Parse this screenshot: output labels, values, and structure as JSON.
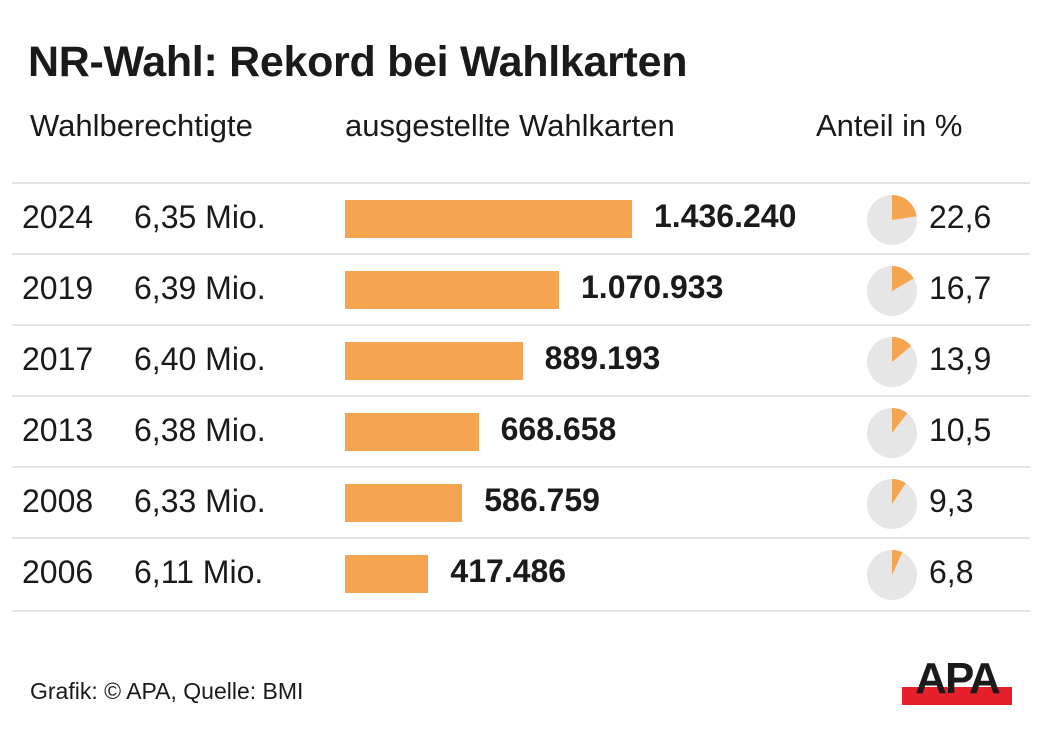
{
  "chart_data": {
    "type": "bar",
    "title": "NR-Wahl: Rekord bei Wahlkarten",
    "columns": [
      "Wahlberechtigte",
      "ausgestellte Wahlkarten",
      "Anteil in %"
    ],
    "categories": [
      "2024",
      "2019",
      "2017",
      "2013",
      "2008",
      "2006"
    ],
    "eligible": [
      "6,35 Mio.",
      "6,39 Mio.",
      "6,40 Mio.",
      "6,38 Mio.",
      "6,33 Mio.",
      "6,11 Mio."
    ],
    "values": [
      1436240,
      1070933,
      889193,
      668658,
      586759,
      417486
    ],
    "value_labels": [
      "1.436.240",
      "1.070.933",
      "889.193",
      "668.658",
      "586.759",
      "417.486"
    ],
    "share": [
      22.6,
      16.7,
      13.9,
      10.5,
      9.3,
      6.8
    ],
    "share_labels": [
      "22,6",
      "16,7",
      "13,9",
      "10,5",
      "9,3",
      "6,8"
    ],
    "colors": {
      "bar": "#f5a550",
      "pie_bg": "#e6e6e6",
      "logo_red": "#e5202a"
    }
  },
  "footer": "Grafik: © APA, Quelle: BMI",
  "logo": "APA"
}
